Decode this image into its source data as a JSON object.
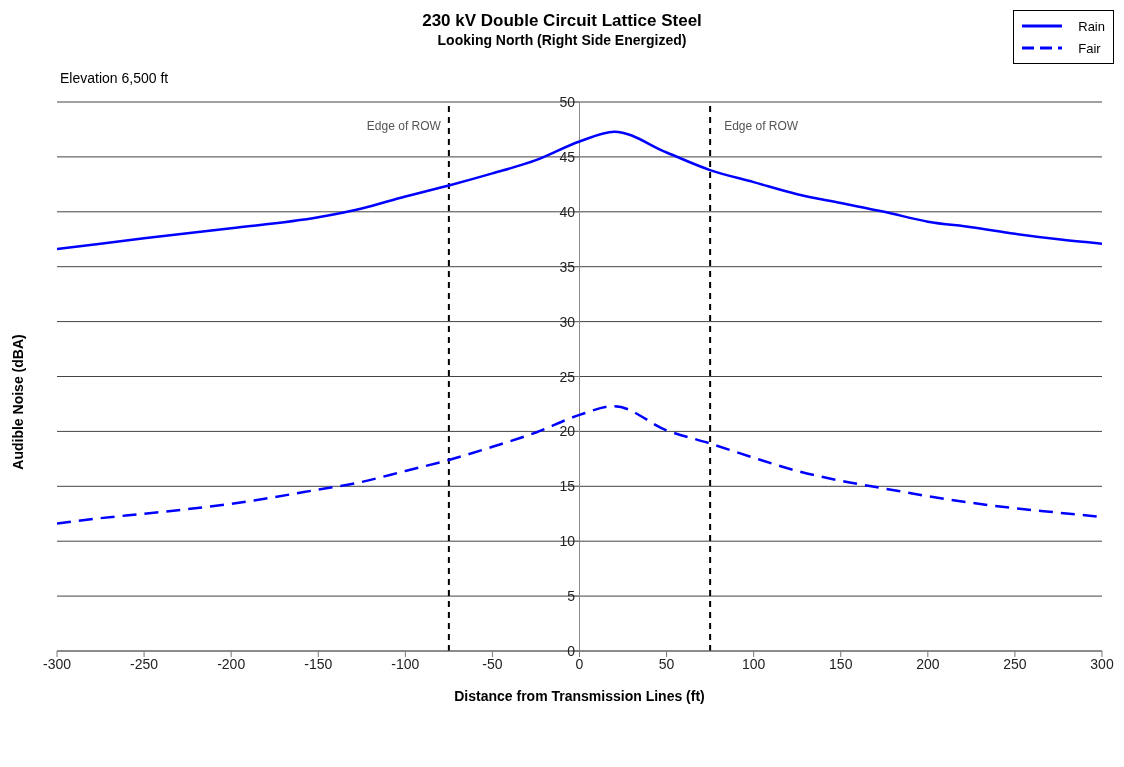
{
  "chart_data": {
    "type": "line",
    "title": "230 kV Double Circuit Lattice Steel",
    "subtitle": "Looking North (Right Side Energized)",
    "xlabel": "Distance from Transmission Lines (ft)",
    "ylabel": "Audible Noise (dBA)",
    "annotations": [
      "Elevation 6,500 ft"
    ],
    "x": [
      -300,
      -275,
      -250,
      -200,
      -150,
      -125,
      -100,
      -75,
      -50,
      -25,
      0,
      20,
      50,
      75,
      100,
      125,
      150,
      175,
      200,
      225,
      250,
      275,
      300
    ],
    "series": [
      {
        "name": "Rain",
        "color": "#0000ff",
        "line_style": "solid",
        "values": [
          36.6,
          37.1,
          37.6,
          38.5,
          39.5,
          40.3,
          41.4,
          42.4,
          43.5,
          44.7,
          46.4,
          47.3,
          45.4,
          43.8,
          42.7,
          41.6,
          40.8,
          40.0,
          39.1,
          38.6,
          38.0,
          37.5,
          37.1
        ]
      },
      {
        "name": "Fair",
        "color": "#0000ff",
        "line_style": "dashed",
        "values": [
          11.6,
          12.1,
          12.5,
          13.4,
          14.7,
          15.4,
          16.4,
          17.4,
          18.6,
          19.9,
          21.5,
          22.3,
          20.1,
          18.9,
          17.6,
          16.4,
          15.5,
          14.8,
          14.1,
          13.5,
          13.0,
          12.6,
          12.2
        ]
      }
    ],
    "xlim": [
      -300,
      300
    ],
    "xticks": [
      -300,
      -250,
      -200,
      -150,
      -100,
      -50,
      0,
      50,
      100,
      150,
      200,
      250,
      300
    ],
    "ylim": [
      0,
      50
    ],
    "yticks": [
      0,
      5,
      10,
      15,
      20,
      25,
      30,
      35,
      40,
      45,
      50
    ],
    "ref_lines": [
      {
        "axis": "x",
        "value": -75,
        "label": "Edge of ROW",
        "color": "#000000",
        "line_style": "dashed"
      },
      {
        "axis": "x",
        "value": 75,
        "label": "Edge of ROW",
        "color": "#000000",
        "line_style": "dashed"
      }
    ],
    "grid": "y",
    "legend": "top right",
    "marker": "none"
  }
}
